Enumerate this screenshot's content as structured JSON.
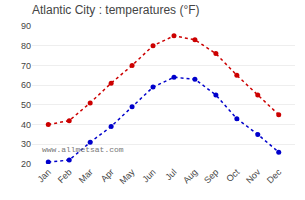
{
  "chart_data": {
    "type": "line",
    "title": "Atlantic City : temperatures (°F)",
    "categories": [
      "Jan",
      "Feb",
      "Mar",
      "Apr",
      "May",
      "Jun",
      "Jul",
      "Aug",
      "Sep",
      "Oct",
      "Nov",
      "Dec"
    ],
    "series": [
      {
        "color": "#cc0000",
        "values": [
          40,
          42,
          51,
          61,
          70,
          80,
          85,
          83,
          76,
          65,
          55,
          45
        ]
      },
      {
        "color": "#0000cc",
        "values": [
          21,
          22,
          31,
          39,
          49,
          59,
          64,
          63,
          55,
          43,
          35,
          26
        ]
      }
    ],
    "marker": "circle",
    "line_style": "dotted",
    "ylim": [
      20,
      90
    ],
    "yticks": [
      20,
      30,
      40,
      50,
      60,
      70,
      80,
      90
    ],
    "grid": true,
    "annotations": [
      "www.allmetsat.com"
    ]
  }
}
